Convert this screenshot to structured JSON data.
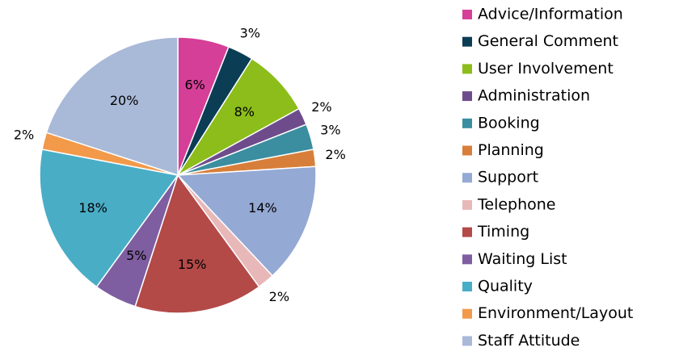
{
  "chart_data": {
    "type": "pie",
    "categories": [
      "Advice/Information",
      "General Comment",
      "User Involvement",
      "Administration",
      "Booking",
      "Planning",
      "Support",
      "Telephone",
      "Timing",
      "Waiting List",
      "Quality",
      "Environment/Layout",
      "Staff Attitude"
    ],
    "values": [
      6,
      3,
      8,
      2,
      3,
      2,
      14,
      2,
      15,
      5,
      18,
      2,
      20
    ],
    "value_labels": [
      "6%",
      "3%",
      "8%",
      "2%",
      "3%",
      "2%",
      "14%",
      "2%",
      "15%",
      "5%",
      "18%",
      "2%",
      "20%"
    ],
    "colors": [
      "#d63f98",
      "#0b3d55",
      "#8cbd1a",
      "#6e4c8c",
      "#3a8ea0",
      "#d77f3a",
      "#94a9d4",
      "#e8b8b8",
      "#b34a48",
      "#7e5ea0",
      "#4aadc6",
      "#f2994a",
      "#a9b9d8"
    ],
    "legend": "right"
  }
}
